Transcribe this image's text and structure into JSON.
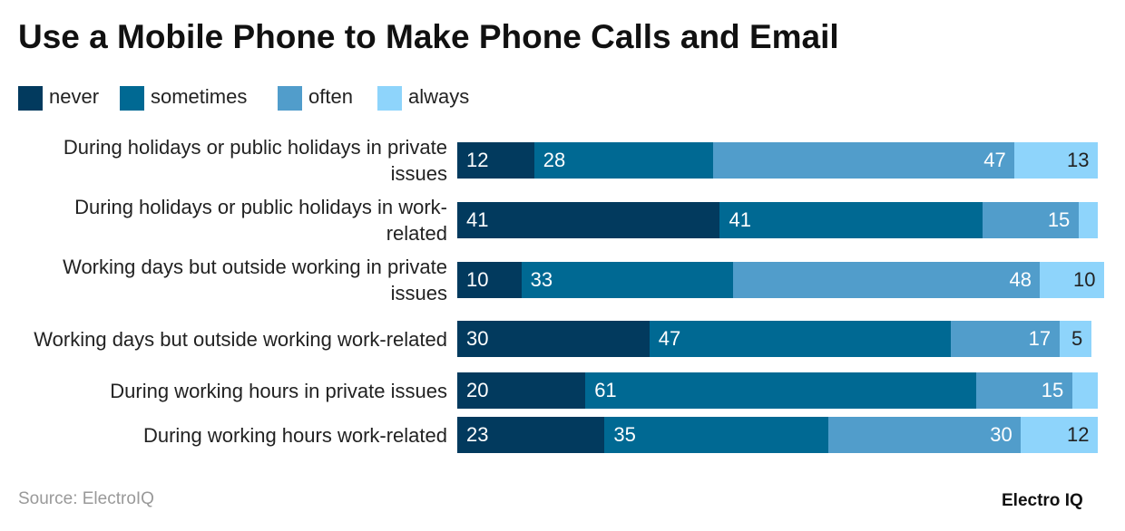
{
  "chart_data": {
    "type": "stacked-bar",
    "title": "Use a Mobile Phone to Make Phone Calls and Email",
    "categories": [
      "During holidays or public holidays in private issues",
      "During holidays or public holidays in work-related",
      "Working days but outside working in private issues",
      "Working days but outside working work-related",
      "During working hours in private issues",
      "During working hours work-related"
    ],
    "series": [
      {
        "name": "never",
        "color": "#023a5e",
        "values": [
          12,
          41,
          10,
          30,
          20,
          23
        ]
      },
      {
        "name": "sometimes",
        "color": "#006993",
        "values": [
          28,
          41,
          33,
          47,
          61,
          35
        ]
      },
      {
        "name": "often",
        "color": "#519dcb",
        "values": [
          47,
          15,
          48,
          17,
          15,
          30
        ]
      },
      {
        "name": "always",
        "color": "#8ed4fb",
        "values": [
          13,
          3,
          10,
          5,
          4,
          12
        ]
      }
    ],
    "source": "Source: ElectroIQ",
    "brand": "Electro IQ"
  }
}
